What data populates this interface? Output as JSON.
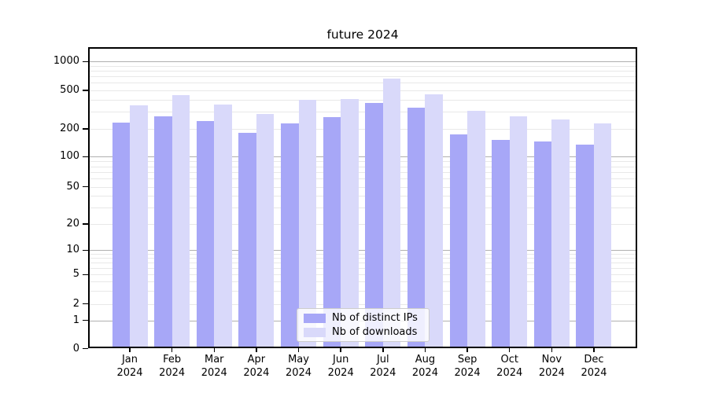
{
  "title": "future 2024",
  "chart_data": {
    "type": "bar",
    "title": "future 2024",
    "categories": [
      "Jan 2024",
      "Feb 2024",
      "Mar 2024",
      "Apr 2024",
      "May 2024",
      "Jun 2024",
      "Jul 2024",
      "Aug 2024",
      "Sep 2024",
      "Oct 2024",
      "Nov 2024",
      "Dec 2024"
    ],
    "series": [
      {
        "name": "Nb of distinct IPs",
        "color": "#a7a7f7",
        "values": [
          232,
          270,
          240,
          180,
          228,
          264,
          372,
          330,
          175,
          151,
          146,
          136
        ]
      },
      {
        "name": "Nb of downloads",
        "color": "#d9d9fa",
        "values": [
          350,
          445,
          355,
          285,
          398,
          405,
          665,
          452,
          305,
          270,
          251,
          228
        ]
      }
    ],
    "yscale": "symlog",
    "yticks": [
      0,
      1,
      2,
      5,
      10,
      20,
      50,
      100,
      200,
      500,
      1000
    ],
    "ylim": [
      0,
      1400
    ],
    "xlabel": "",
    "ylabel": "",
    "grid": true,
    "legend_position": "lower-center"
  },
  "legend": {
    "items": [
      {
        "label": "Nb of distinct IPs",
        "color": "#a7a7f7"
      },
      {
        "label": "Nb of downloads",
        "color": "#d9d9fa"
      }
    ]
  },
  "colors": {
    "background": "#ffffff",
    "spine": "#000000",
    "grid_major": "#b0b0b0",
    "grid_minor": "#e8e8e8",
    "text": "#000000",
    "legend_border": "#cccccc"
  }
}
